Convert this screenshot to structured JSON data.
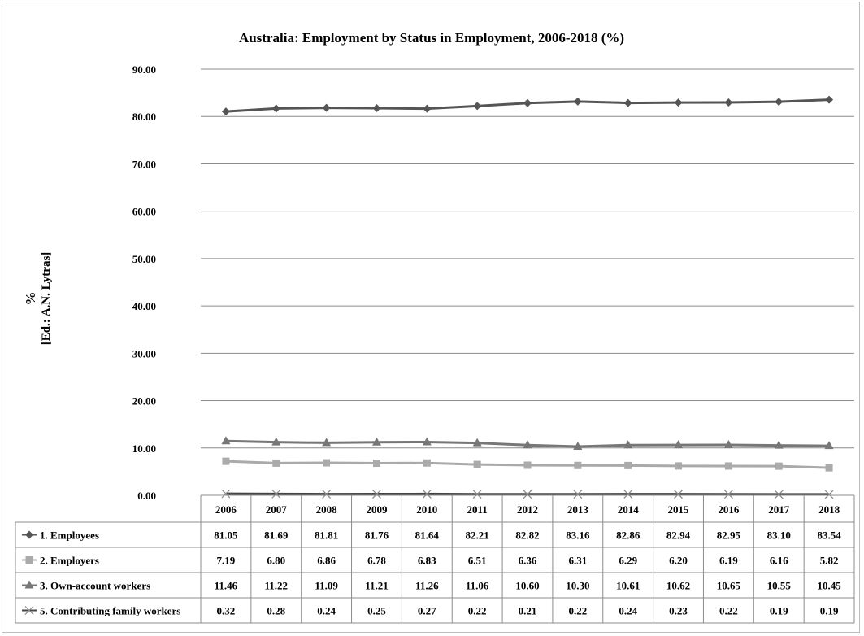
{
  "chart_data": {
    "type": "line",
    "title": "Australia: Employment by Status in Employment, 2006-2018 (%)",
    "ylabel_lines": [
      "%",
      "[Ed.: A.N. Lytras]"
    ],
    "xlabel": "",
    "ylim": [
      0,
      90
    ],
    "y_ticks": [
      "0.00",
      "10.00",
      "20.00",
      "30.00",
      "40.00",
      "50.00",
      "60.00",
      "70.00",
      "80.00",
      "90.00"
    ],
    "grid": true,
    "legend_placement": "data-table-left",
    "categories": [
      "2006",
      "2007",
      "2008",
      "2009",
      "2010",
      "2011",
      "2012",
      "2013",
      "2014",
      "2015",
      "2016",
      "2017",
      "2018"
    ],
    "series": [
      {
        "name": "1. Employees",
        "marker": "diamond",
        "color": "#555555",
        "values": [
          81.05,
          81.69,
          81.81,
          81.76,
          81.64,
          82.21,
          82.82,
          83.16,
          82.86,
          82.94,
          82.95,
          83.1,
          83.54
        ],
        "labels": [
          "81.05",
          "81.69",
          "81.81",
          "81.76",
          "81.64",
          "82.21",
          "82.82",
          "83.16",
          "82.86",
          "82.94",
          "82.95",
          "83.10",
          "83.54"
        ]
      },
      {
        "name": "2. Employers",
        "marker": "square",
        "color": "#aaaaaa",
        "values": [
          7.19,
          6.8,
          6.86,
          6.78,
          6.83,
          6.51,
          6.36,
          6.31,
          6.29,
          6.2,
          6.19,
          6.16,
          5.82
        ],
        "labels": [
          "7.19",
          "6.80",
          "6.86",
          "6.78",
          "6.83",
          "6.51",
          "6.36",
          "6.31",
          "6.29",
          "6.20",
          "6.19",
          "6.16",
          "5.82"
        ]
      },
      {
        "name": "3. Own-account workers",
        "marker": "triangle",
        "color": "#777777",
        "values": [
          11.46,
          11.22,
          11.09,
          11.21,
          11.26,
          11.06,
          10.6,
          10.3,
          10.61,
          10.62,
          10.65,
          10.55,
          10.45
        ],
        "labels": [
          "11.46",
          "11.22",
          "11.09",
          "11.21",
          "11.26",
          "11.06",
          "10.60",
          "10.30",
          "10.61",
          "10.62",
          "10.65",
          "10.55",
          "10.45"
        ]
      },
      {
        "name": "5. Contributing family workers",
        "marker": "x",
        "color": "#444444",
        "values": [
          0.32,
          0.28,
          0.24,
          0.25,
          0.27,
          0.22,
          0.21,
          0.22,
          0.24,
          0.23,
          0.22,
          0.19,
          0.19
        ],
        "labels": [
          "0.32",
          "0.28",
          "0.24",
          "0.25",
          "0.27",
          "0.22",
          "0.21",
          "0.22",
          "0.24",
          "0.23",
          "0.22",
          "0.19",
          "0.19"
        ]
      }
    ]
  }
}
